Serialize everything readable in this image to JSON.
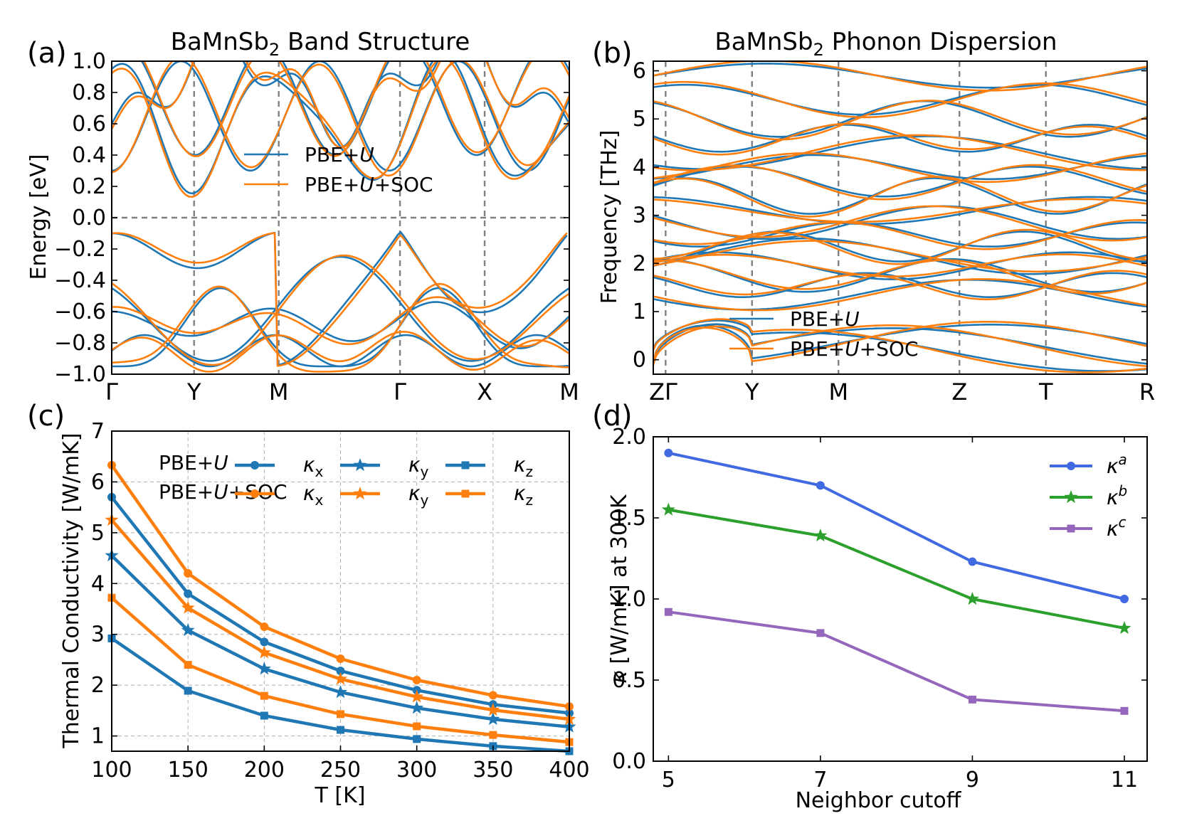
{
  "chart_data": [
    {
      "panel": "(a)",
      "type": "line",
      "title": "BaMnSb",
      "title_subscript": "2",
      "title_suffix": " Band Structure",
      "ylabel": "Energy [eV]",
      "ylim": [
        -1.0,
        1.0
      ],
      "yticks": [
        "1.0",
        "0.8",
        "0.6",
        "0.4",
        "0.2",
        "0.0",
        "−0.2",
        "−0.4",
        "−0.6",
        "−0.8",
        "−1.0"
      ],
      "yticks_values": [
        1.0,
        0.8,
        0.6,
        0.4,
        0.2,
        0.0,
        -0.2,
        -0.4,
        -0.6,
        -0.8,
        -1.0
      ],
      "kpath": [
        "Γ",
        "Y",
        "M",
        "Γ",
        "X",
        "M"
      ],
      "kpath_positions": [
        0,
        0.18,
        0.365,
        0.63,
        0.815,
        1.0
      ],
      "fermi_level": 0.0,
      "legend": [
        {
          "label_prefix": "PBE+",
          "label_italic": "U",
          "label_suffix": "",
          "color": "#1f77b4"
        },
        {
          "label_prefix": "PBE+",
          "label_italic": "U",
          "label_suffix": "+SOC",
          "color": "#ff7f0e"
        }
      ],
      "series": [
        {
          "name": "PBE+U",
          "color": "#1f77b4"
        },
        {
          "name": "PBE+U+SOC",
          "color": "#ff7f0e"
        }
      ]
    },
    {
      "panel": "(b)",
      "type": "line",
      "title": "BaMnSb",
      "title_subscript": "2",
      "title_suffix": " Phonon Dispersion",
      "ylabel": "Frequency [THz]",
      "ylim": [
        -0.3,
        6.2
      ],
      "yticks": [
        "0",
        "1",
        "2",
        "3",
        "4",
        "5",
        "6"
      ],
      "yticks_values": [
        0,
        1,
        2,
        3,
        4,
        5,
        6
      ],
      "kpath": [
        "Z",
        "Γ",
        "Y",
        "M",
        "Z",
        "T",
        "R"
      ],
      "kpath_label_display": [
        "ZΓ",
        "",
        "Y",
        "M",
        "Z",
        "T",
        "R"
      ],
      "kpath_positions": [
        0,
        0.025,
        0.2,
        0.375,
        0.62,
        0.795,
        1.0
      ],
      "legend": [
        {
          "label_prefix": "PBE+",
          "label_italic": "U",
          "label_suffix": "",
          "color": "#1f77b4"
        },
        {
          "label_prefix": "PBE+",
          "label_italic": "U",
          "label_suffix": "+SOC",
          "color": "#ff7f0e"
        }
      ],
      "series": [
        {
          "name": "PBE+U",
          "color": "#1f77b4"
        },
        {
          "name": "PBE+U+SOC",
          "color": "#ff7f0e"
        }
      ]
    },
    {
      "panel": "(c)",
      "type": "line",
      "xlabel": "T [K]",
      "ylabel": "Thermal Conductivity [W/mK]",
      "xlim": [
        100,
        400
      ],
      "ylim": [
        0.7,
        7.0
      ],
      "xticks": [
        100,
        150,
        200,
        250,
        300,
        350,
        400
      ],
      "yticks": [
        1,
        2,
        3,
        4,
        5,
        6,
        7
      ],
      "grid": true,
      "x": [
        100,
        150,
        200,
        250,
        300,
        350,
        400
      ],
      "legend_group_labels": [
        {
          "prefix": "PBE+",
          "italic": "U",
          "suffix": ""
        },
        {
          "prefix": "PBE+",
          "italic": "U",
          "suffix": "+SOC"
        }
      ],
      "series": [
        {
          "name": "κx",
          "symbol": "κ",
          "sub": "x",
          "group": "PBE+U",
          "marker": "circle",
          "color": "#1f77b4",
          "values": [
            5.7,
            3.8,
            2.85,
            2.28,
            1.9,
            1.62,
            1.45
          ]
        },
        {
          "name": "κy",
          "symbol": "κ",
          "sub": "y",
          "group": "PBE+U",
          "marker": "star",
          "color": "#1f77b4",
          "values": [
            4.55,
            3.08,
            2.32,
            1.86,
            1.55,
            1.33,
            1.18
          ]
        },
        {
          "name": "κz",
          "symbol": "κ",
          "sub": "z",
          "group": "PBE+U",
          "marker": "square",
          "color": "#1f77b4",
          "values": [
            2.92,
            1.89,
            1.4,
            1.12,
            0.94,
            0.8,
            0.7
          ]
        },
        {
          "name": "κx",
          "symbol": "κ",
          "sub": "x",
          "group": "PBE+U+SOC",
          "marker": "circle",
          "color": "#ff7f0e",
          "values": [
            6.33,
            4.2,
            3.15,
            2.52,
            2.1,
            1.8,
            1.58
          ]
        },
        {
          "name": "κy",
          "symbol": "κ",
          "sub": "y",
          "group": "PBE+U+SOC",
          "marker": "star",
          "color": "#ff7f0e",
          "values": [
            5.25,
            3.52,
            2.64,
            2.12,
            1.77,
            1.51,
            1.33
          ]
        },
        {
          "name": "κz",
          "symbol": "κ",
          "sub": "z",
          "group": "PBE+U+SOC",
          "marker": "square",
          "color": "#ff7f0e",
          "values": [
            3.72,
            2.4,
            1.79,
            1.43,
            1.19,
            1.02,
            0.88
          ]
        }
      ]
    },
    {
      "panel": "(d)",
      "type": "line",
      "xlabel": "Neighbor cutoff",
      "ylabel": "κ [W/mK] at 300K",
      "xlim": [
        4.8,
        11.3
      ],
      "ylim": [
        0.0,
        2.0
      ],
      "xticks": [
        5,
        7,
        9,
        11
      ],
      "yticks": [
        "0.0",
        "0.5",
        "1.0",
        "1.5",
        "2.0"
      ],
      "yticks_values": [
        0.0,
        0.5,
        1.0,
        1.5,
        2.0
      ],
      "x": [
        5,
        7,
        9,
        11
      ],
      "series": [
        {
          "name": "κ^a",
          "symbol": "κ",
          "sup": "a",
          "marker": "circle",
          "color": "#4169e1",
          "values": [
            1.9,
            1.7,
            1.23,
            1.0
          ]
        },
        {
          "name": "κ^b",
          "symbol": "κ",
          "sup": "b",
          "marker": "star",
          "color": "#2ca02c",
          "values": [
            1.55,
            1.39,
            1.0,
            0.82
          ]
        },
        {
          "name": "κ^c",
          "symbol": "κ",
          "sup": "c",
          "marker": "square",
          "color": "#9467bd",
          "values": [
            0.92,
            0.79,
            0.38,
            0.31
          ]
        }
      ]
    }
  ]
}
